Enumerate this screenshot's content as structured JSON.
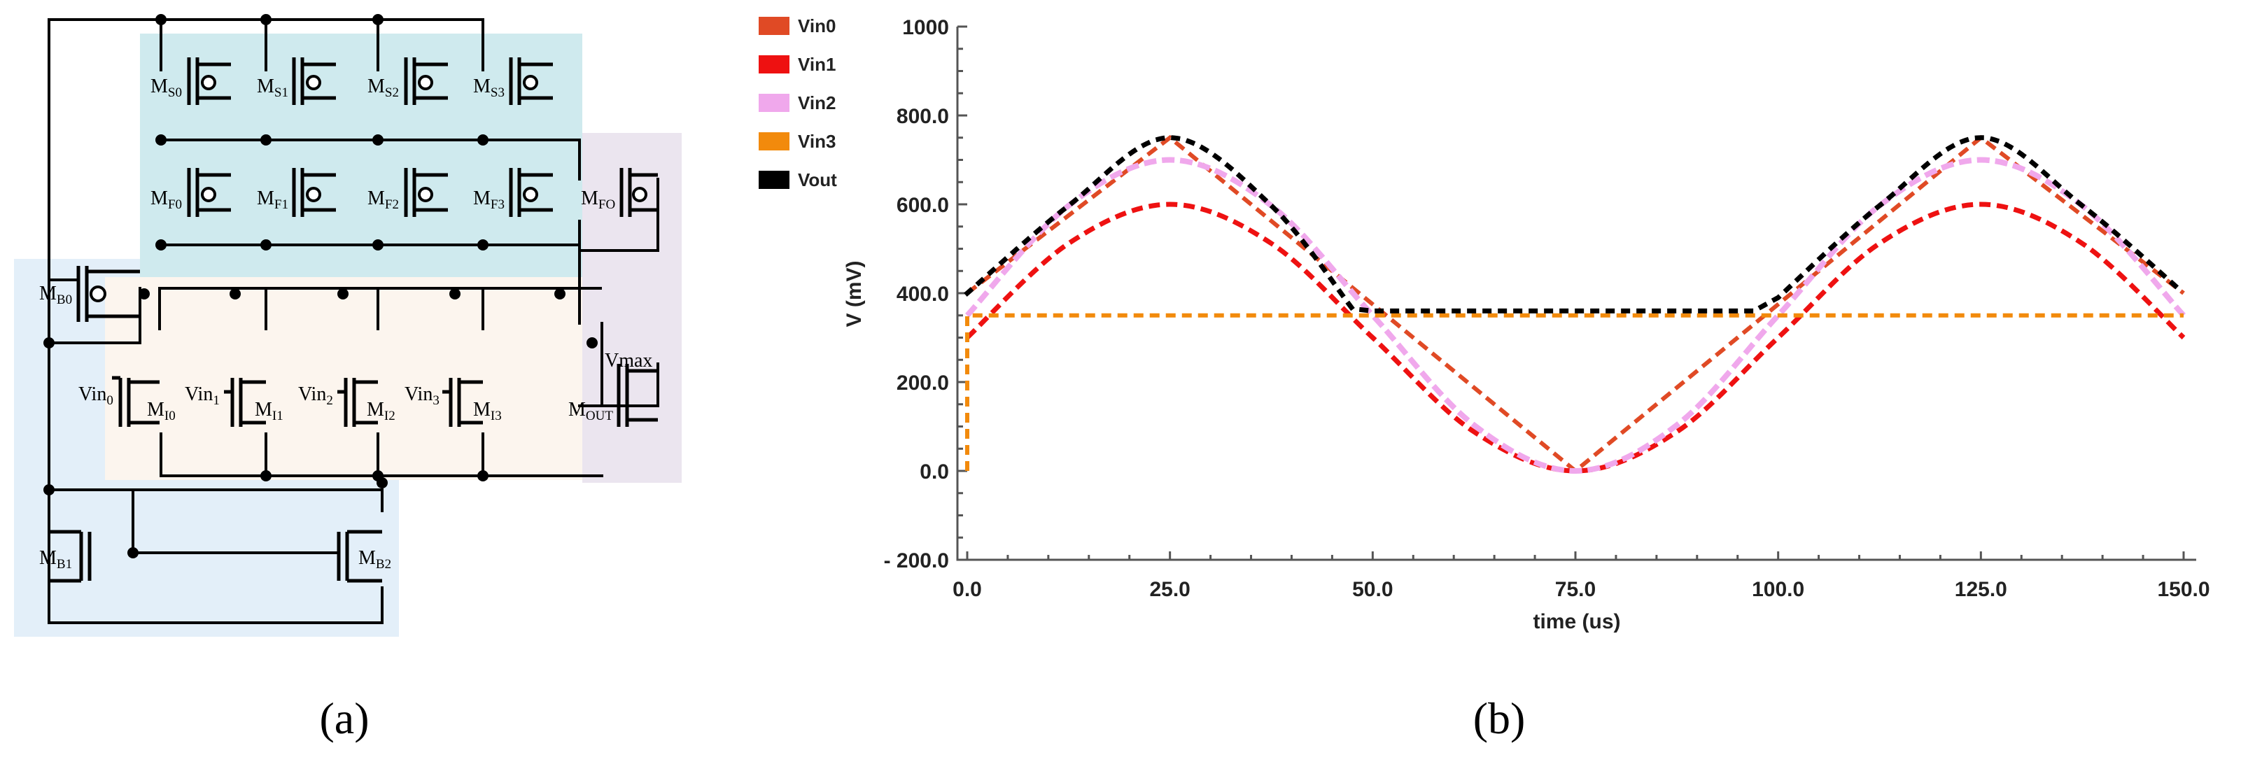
{
  "panel_a": {
    "caption": "(a)",
    "transistors": {
      "ms0": {
        "main": "M",
        "sub": "S0"
      },
      "ms1": {
        "main": "M",
        "sub": "S1"
      },
      "ms2": {
        "main": "M",
        "sub": "S2"
      },
      "ms3": {
        "main": "M",
        "sub": "S3"
      },
      "mf0": {
        "main": "M",
        "sub": "F0"
      },
      "mf1": {
        "main": "M",
        "sub": "F1"
      },
      "mf2": {
        "main": "M",
        "sub": "F2"
      },
      "mf3": {
        "main": "M",
        "sub": "F3"
      },
      "mfo": {
        "main": "M",
        "sub": "FO"
      },
      "mb0": {
        "main": "M",
        "sub": "B0"
      },
      "mi0": {
        "main": "M",
        "sub": "I0"
      },
      "mi1": {
        "main": "M",
        "sub": "I1"
      },
      "mi2": {
        "main": "M",
        "sub": "I2"
      },
      "mi3": {
        "main": "M",
        "sub": "I3"
      },
      "mout": {
        "main": "M",
        "sub": "OUT"
      },
      "mb1": {
        "main": "M",
        "sub": "B1"
      },
      "mb2": {
        "main": "M",
        "sub": "B2"
      }
    },
    "inputs": {
      "vin0": {
        "main": "Vin",
        "sub": "0"
      },
      "vin1": {
        "main": "Vin",
        "sub": "1"
      },
      "vin2": {
        "main": "Vin",
        "sub": "2"
      },
      "vin3": {
        "main": "Vin",
        "sub": "3"
      }
    },
    "vmax": "Vmax"
  },
  "chart_data": {
    "type": "line",
    "caption": "(b)",
    "xlabel": "time (us)",
    "ylabel": "V (mV)",
    "xlim": [
      0,
      150
    ],
    "ylim": [
      -200,
      1000
    ],
    "xticks": [
      "0.0",
      "25.0",
      "50.0",
      "75.0",
      "100.0",
      "125.0",
      "150.0"
    ],
    "yticks": [
      "1000",
      "800.0",
      "600.0",
      "400.0",
      "200.0",
      "0.0",
      "- 200.0"
    ],
    "legend": [
      "Vin0",
      "Vin1",
      "Vin2",
      "Vin3",
      "Vout"
    ],
    "series": [
      {
        "name": "Vin0",
        "color": "#e04a25",
        "x": [
          0,
          25,
          75,
          125,
          150
        ],
        "y": [
          400,
          750,
          0,
          750,
          400
        ]
      },
      {
        "name": "Vin1",
        "color": "#ee1111",
        "x": [
          0,
          12.5,
          25,
          37.5,
          50,
          62.5,
          75,
          87.5,
          100,
          112.5,
          125,
          137.5,
          150
        ],
        "y": [
          300,
          512,
          600,
          512,
          300,
          88,
          0,
          88,
          300,
          512,
          600,
          512,
          300
        ]
      },
      {
        "name": "Vin2",
        "color": "#f0a8ec",
        "x": [
          0,
          12.5,
          25,
          37.5,
          50,
          62.5,
          75,
          87.5,
          100,
          112.5,
          125,
          137.5,
          150
        ],
        "y": [
          350,
          597,
          700,
          597,
          350,
          103,
          0,
          103,
          350,
          597,
          700,
          597,
          350
        ]
      },
      {
        "name": "Vin3",
        "color": "#f28a0c",
        "x": [
          0,
          0,
          150
        ],
        "y": [
          0,
          350,
          350
        ]
      },
      {
        "name": "Vout",
        "color": "#000000",
        "x": [
          0,
          12.5,
          25,
          37.5,
          47.5,
          50,
          97,
          100,
          112.5,
          125,
          137.5,
          150
        ],
        "y": [
          400,
          597,
          750,
          597,
          365,
          360,
          360,
          390,
          597,
          750,
          597,
          400
        ]
      }
    ]
  }
}
